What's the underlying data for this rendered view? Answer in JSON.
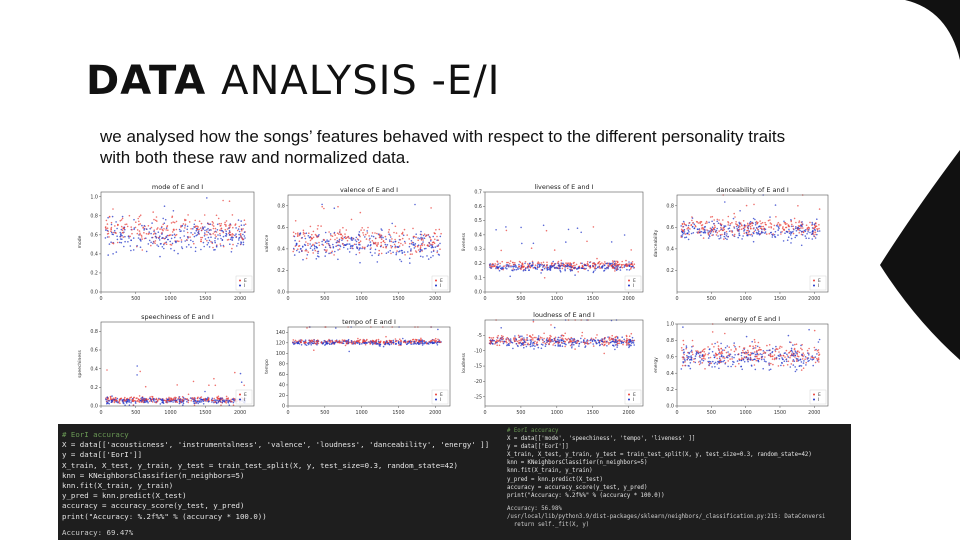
{
  "slide": {
    "title_bold": "DATA",
    "title_light": "ANALYSIS -E/I",
    "subtitle": "we analysed how the songs’ features behaved with respect to the different personality traits with both these raw and normalized data."
  },
  "colors": {
    "E": "#e8413c",
    "I": "#2236c8",
    "dark": "#111111"
  },
  "chart_data": [
    {
      "type": "scatter",
      "title": "mode of E and I",
      "ylabel": "mode",
      "xlim": [
        0,
        2200
      ],
      "ylim": [
        0,
        1.05
      ],
      "xticks": [
        "0",
        "500",
        "1000",
        "1500",
        "2000"
      ],
      "yticks": [
        "0.0",
        "0.2",
        "0.4",
        "0.6",
        "0.8",
        "1.0"
      ],
      "ytickvals": [
        0,
        0.2,
        0.4,
        0.6,
        0.8,
        1.0
      ],
      "center": 0.6,
      "spread": 0.16,
      "legend": [
        "E",
        "I"
      ],
      "series": [
        {
          "name": "E"
        },
        {
          "name": "I"
        }
      ]
    },
    {
      "type": "scatter",
      "title": "valence of E and I",
      "ylabel": "valence",
      "xlim": [
        0,
        2200
      ],
      "ylim": [
        0,
        0.9
      ],
      "xticks": [
        "0",
        "500",
        "1000",
        "1500",
        "2000"
      ],
      "yticks": [
        "0.0",
        "0.2",
        "0.4",
        "0.6",
        "0.8"
      ],
      "ytickvals": [
        0,
        0.2,
        0.4,
        0.6,
        0.8
      ],
      "center": 0.45,
      "spread": 0.13,
      "legend": [
        "E",
        "I"
      ],
      "series": [
        {
          "name": "E"
        },
        {
          "name": "I"
        }
      ]
    },
    {
      "type": "scatter",
      "title": "liveness of E and I",
      "ylabel": "liveness",
      "xlim": [
        0,
        2200
      ],
      "ylim": [
        0,
        0.7
      ],
      "xticks": [
        "0",
        "500",
        "1000",
        "1500",
        "2000"
      ],
      "yticks": [
        "0.0",
        "0.1",
        "0.2",
        "0.3",
        "0.4",
        "0.5",
        "0.6",
        "0.7"
      ],
      "ytickvals": [
        0,
        0.1,
        0.2,
        0.3,
        0.4,
        0.5,
        0.6,
        0.7
      ],
      "center": 0.18,
      "spread": 0.03,
      "legend": [
        "E",
        "I"
      ],
      "series": [
        {
          "name": "E"
        },
        {
          "name": "I"
        }
      ]
    },
    {
      "type": "scatter",
      "title": "danceability of E and I",
      "ylabel": "danceability",
      "xlim": [
        0,
        2200
      ],
      "ylim": [
        0,
        0.9
      ],
      "xticks": [
        "0",
        "500",
        "1000",
        "1500",
        "2000"
      ],
      "yticks": [
        "0.2",
        "0.4",
        "0.6",
        "0.8"
      ],
      "ytickvals": [
        0.2,
        0.4,
        0.6,
        0.8
      ],
      "center": 0.58,
      "spread": 0.09,
      "legend": [
        "E",
        "I"
      ],
      "series": [
        {
          "name": "E"
        },
        {
          "name": "I"
        }
      ]
    },
    {
      "type": "scatter",
      "title": "speechiness of E and I",
      "ylabel": "speechiness",
      "xlim": [
        0,
        2200
      ],
      "ylim": [
        0,
        0.9
      ],
      "xticks": [
        "0",
        "500",
        "1000",
        "1500",
        "2000"
      ],
      "yticks": [
        "0.0",
        "0.2",
        "0.4",
        "0.6",
        "0.8"
      ],
      "ytickvals": [
        0,
        0.2,
        0.4,
        0.6,
        0.8
      ],
      "center": 0.06,
      "spread": 0.03,
      "legend": [
        "E",
        "I"
      ],
      "series": [
        {
          "name": "E"
        },
        {
          "name": "I"
        }
      ]
    },
    {
      "type": "scatter",
      "title": "tempo of E and I",
      "ylabel": "tempo",
      "xlim": [
        0,
        2200
      ],
      "ylim": [
        0,
        150
      ],
      "xticks": [
        "0",
        "500",
        "1000",
        "1500",
        "2000"
      ],
      "yticks": [
        "0",
        "20",
        "40",
        "60",
        "80",
        "100",
        "120",
        "140"
      ],
      "ytickvals": [
        0,
        20,
        40,
        60,
        80,
        100,
        120,
        140
      ],
      "center": 121,
      "spread": 5,
      "legend": [
        "E",
        "I"
      ],
      "series": [
        {
          "name": "E"
        },
        {
          "name": "I"
        }
      ]
    },
    {
      "type": "scatter",
      "title": "loudness of E and I",
      "ylabel": "loudness",
      "xlim": [
        0,
        2200
      ],
      "ylim": [
        -28,
        0
      ],
      "xticks": [
        "0",
        "500",
        "1000",
        "1500",
        "2000"
      ],
      "yticks": [
        "-25",
        "-20",
        "-15",
        "-10",
        "-5"
      ],
      "ytickvals": [
        -25,
        -20,
        -15,
        -10,
        -5
      ],
      "center": -7,
      "spread": 1.8,
      "legend": [
        "E",
        "I"
      ],
      "series": [
        {
          "name": "E"
        },
        {
          "name": "I"
        }
      ]
    },
    {
      "type": "scatter",
      "title": "energy of E and I",
      "ylabel": "energy",
      "xlim": [
        0,
        2200
      ],
      "ylim": [
        0,
        1.0
      ],
      "xticks": [
        "0",
        "500",
        "1000",
        "1500",
        "2000"
      ],
      "yticks": [
        "0.0",
        "0.2",
        "0.4",
        "0.6",
        "0.8",
        "1.0"
      ],
      "ytickvals": [
        0,
        0.2,
        0.4,
        0.6,
        0.8,
        1.0
      ],
      "center": 0.6,
      "spread": 0.13,
      "legend": [
        "E",
        "I"
      ],
      "series": [
        {
          "name": "E"
        },
        {
          "name": "I"
        }
      ]
    }
  ],
  "code_left": {
    "comment": "# EorI accuracy",
    "lines": [
      "X = data[['acousticness', 'instrumentalness', 'valence', 'loudness', 'danceability', 'energy' ]]",
      "y = data[['EorI']]",
      "X_train, X_test, y_train, y_test = train_test_split(X, y, test_size=0.3, random_state=42)",
      "knn = KNeighborsClassifier(n_neighbors=5)",
      "knn.fit(X_train, y_train)",
      "y_pred = knn.predict(X_test)",
      "accuracy = accuracy_score(y_test, y_pred)",
      "print(\"Accuracy: %.2f%%\" % (accuracy * 100.0))"
    ],
    "output": "Accuracy: 69.47%"
  },
  "code_right": {
    "comment": "# EorI accuracy",
    "lines": [
      "X = data[['mode', 'speechiness', 'tempo', 'liveness' ]]",
      "y = data[['EorI']]",
      "X_train, X_test, y_train, y_test = train_test_split(X, y, test_size=0.3, random_state=42)",
      "knn = KNeighborsClassifier(n_neighbors=5)",
      "knn.fit(X_train, y_train)",
      "y_pred = knn.predict(X_test)",
      "accuracy = accuracy_score(y_test, y_pred)",
      "print(\"Accuracy: %.2f%%\" % (accuracy * 100.0))"
    ],
    "output": [
      "Accuracy: 56.98%",
      "/usr/local/lib/python3.9/dist-packages/sklearn/neighbors/_classification.py:215: DataConversi",
      "  return self._fit(X, y)"
    ]
  }
}
